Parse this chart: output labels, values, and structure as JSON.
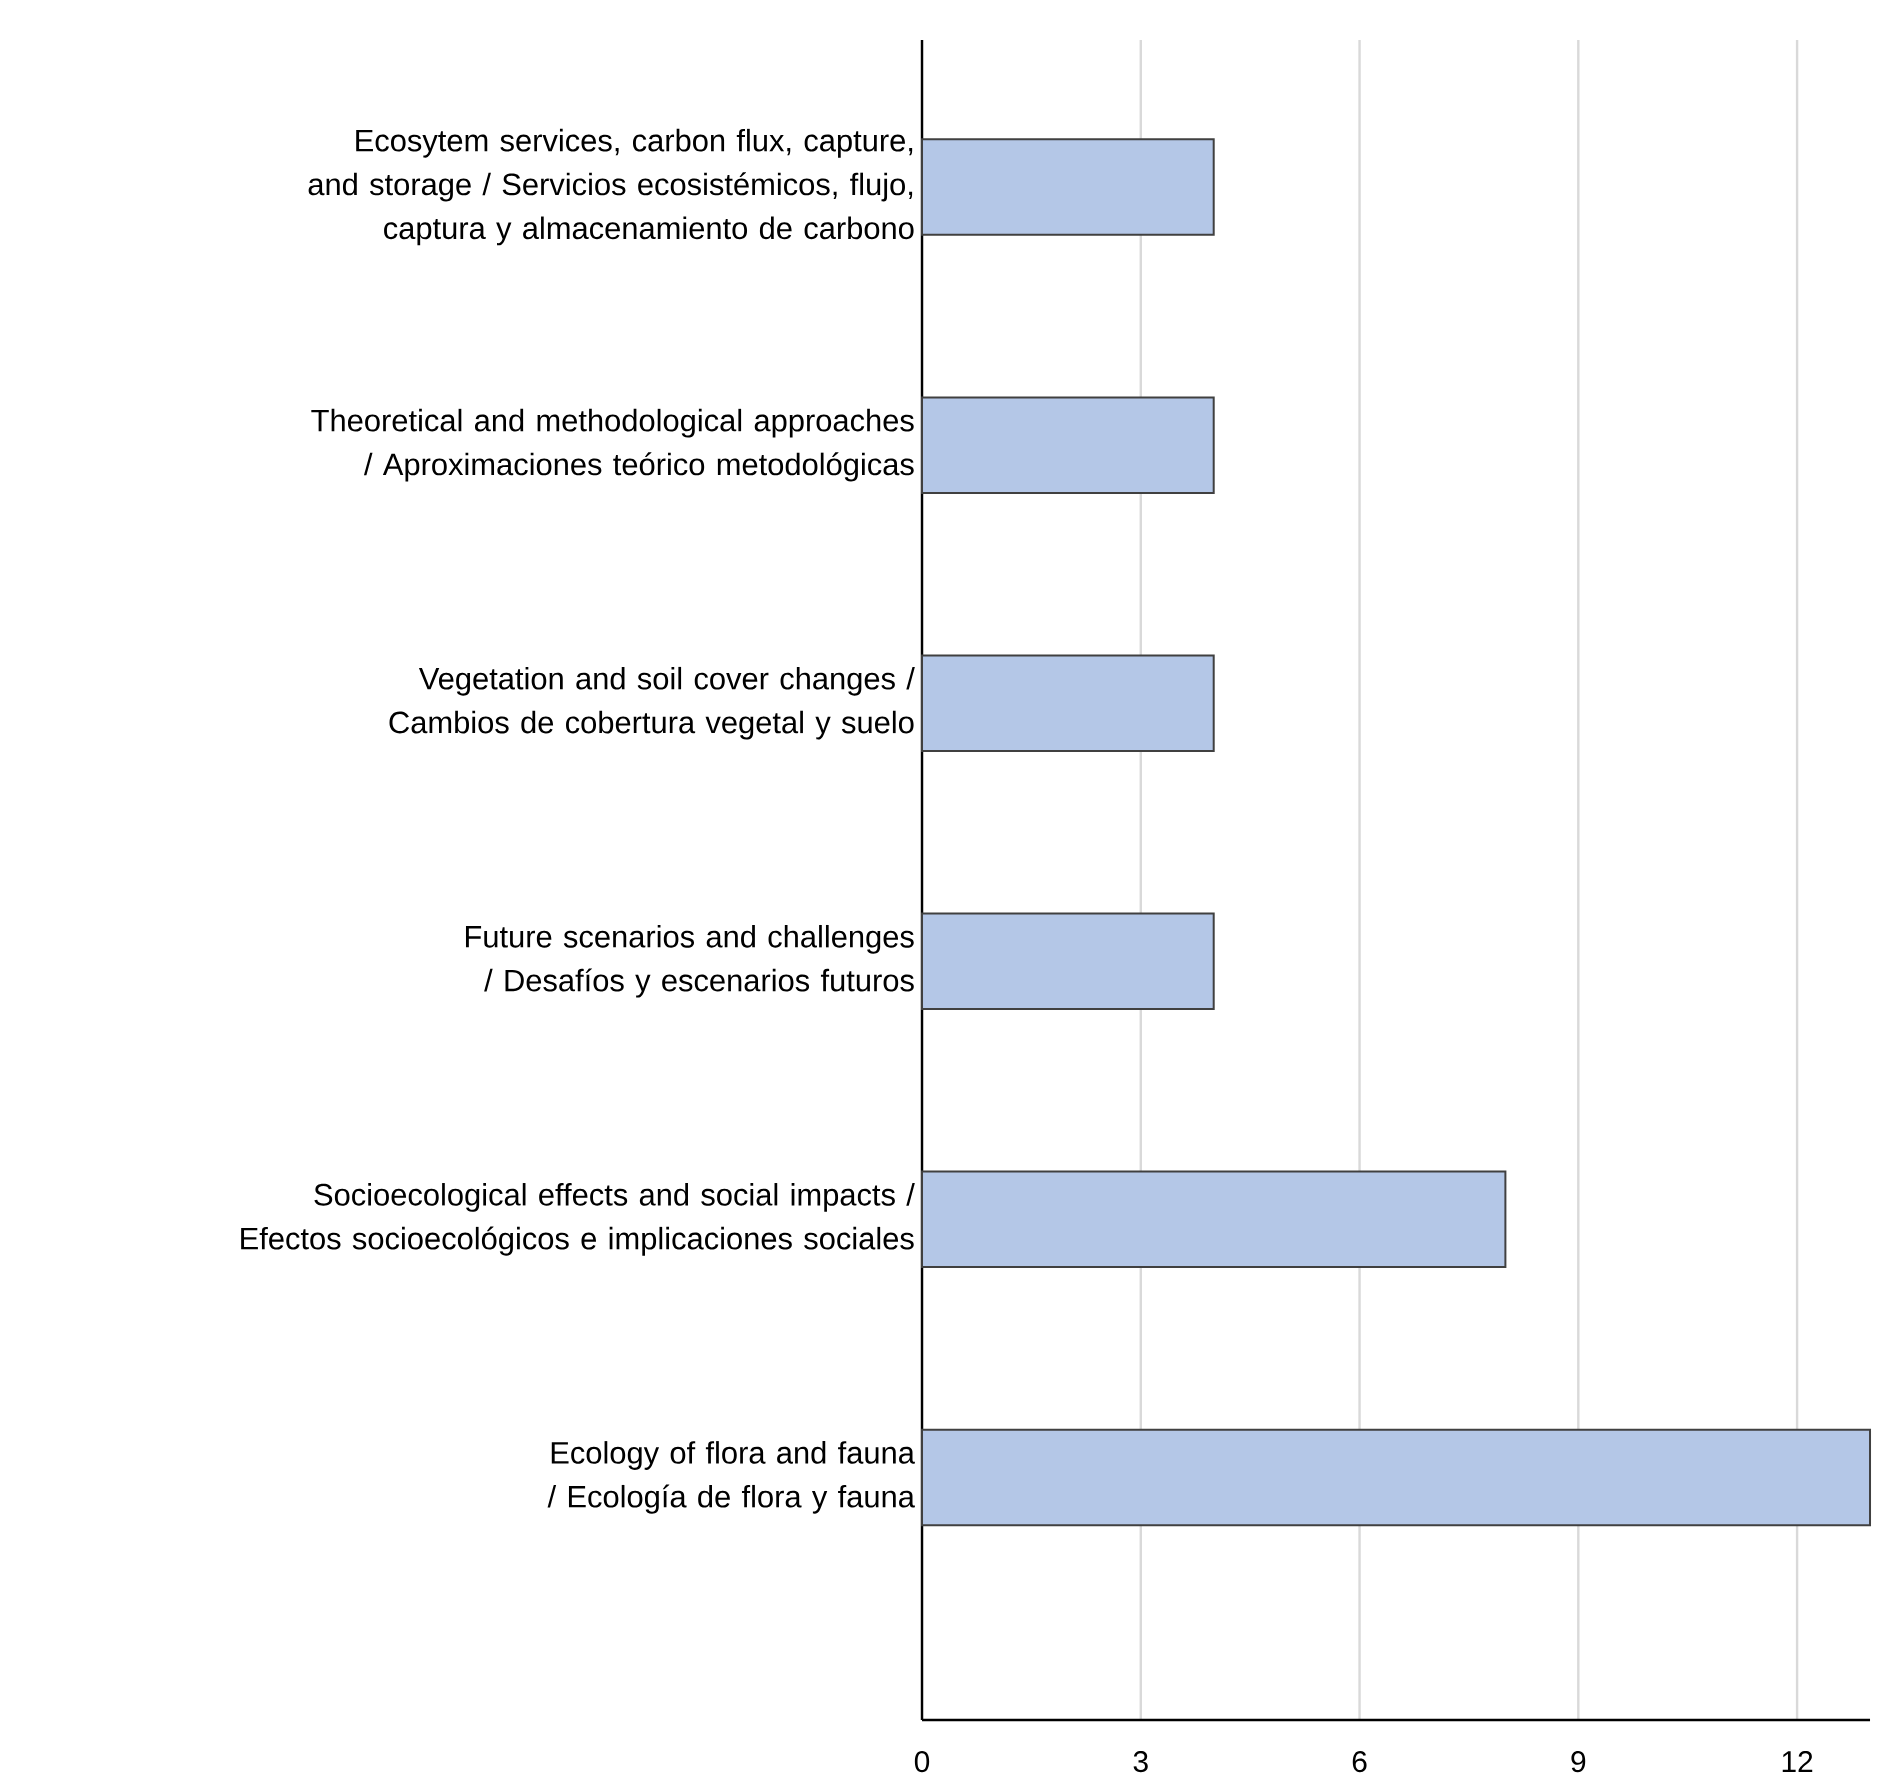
{
  "chart_data": {
    "type": "bar",
    "orientation": "horizontal",
    "categories": [
      "Ecosytem services, carbon flux, capture, and storage / Servicios ecosistémicos, flujo, captura y almacenamiento de carbono",
      "Theoretical and methodological approaches / Aproximaciones teórico metodológicas",
      "Vegetation and soil cover changes / Cambios de cobertura vegetal y suelo",
      "Future scenarios and challenges / Desafíos y escenarios futuros",
      "Socioecological effects and social impacts / Efectos socioecológicos e implicaciones sociales",
      "Ecology of flora and fauna / Ecología de flora y fauna"
    ],
    "values": [
      4,
      4,
      4,
      4,
      8,
      13
    ],
    "color": "#b4c7e7",
    "xlim": [
      0,
      13
    ],
    "xticks": [
      0,
      3,
      6,
      9,
      12
    ],
    "grid": "x"
  }
}
